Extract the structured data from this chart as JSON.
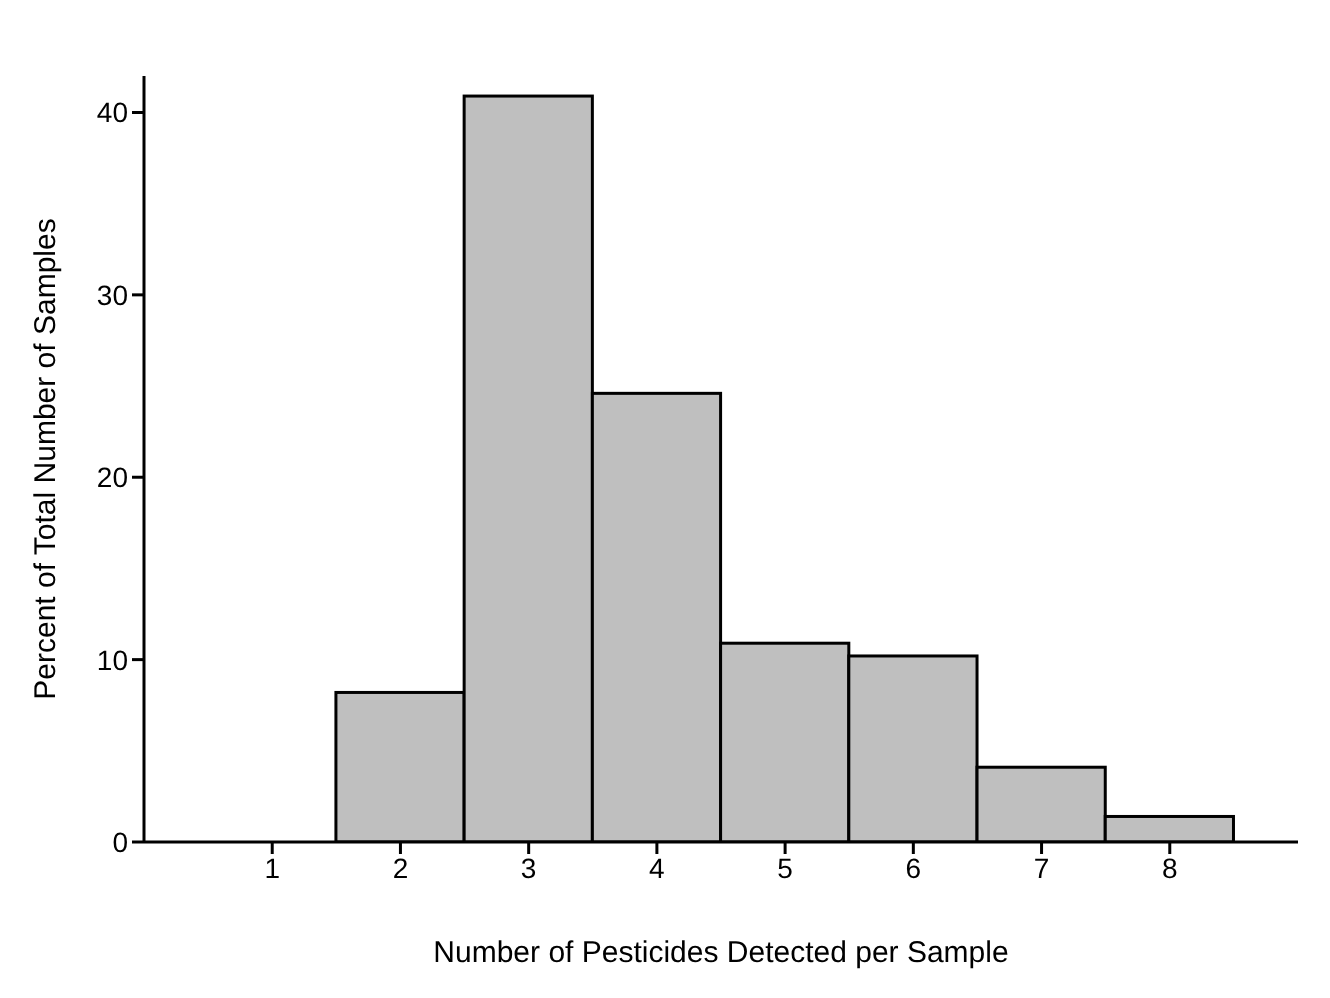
{
  "chart_data": {
    "type": "histogram",
    "xlabel": "Number of Pesticides Detected per Sample",
    "ylabel": "Percent of Total Number of Samples",
    "bins": [
      0.5,
      1.5,
      2.5,
      3.5,
      4.5,
      5.5,
      6.5,
      7.5,
      8.5
    ],
    "values": [
      0,
      8.2,
      40.9,
      24.6,
      10.9,
      10.2,
      4.1,
      1.4
    ],
    "color": "#bfbfbf",
    "xlim": [
      0,
      9
    ],
    "xticks": [
      1,
      2,
      3,
      4,
      5,
      6,
      7,
      8
    ],
    "ylim": [
      0,
      42
    ],
    "yticks": [
      0,
      10,
      20,
      30,
      40
    ],
    "grid": false,
    "legend": false
  }
}
